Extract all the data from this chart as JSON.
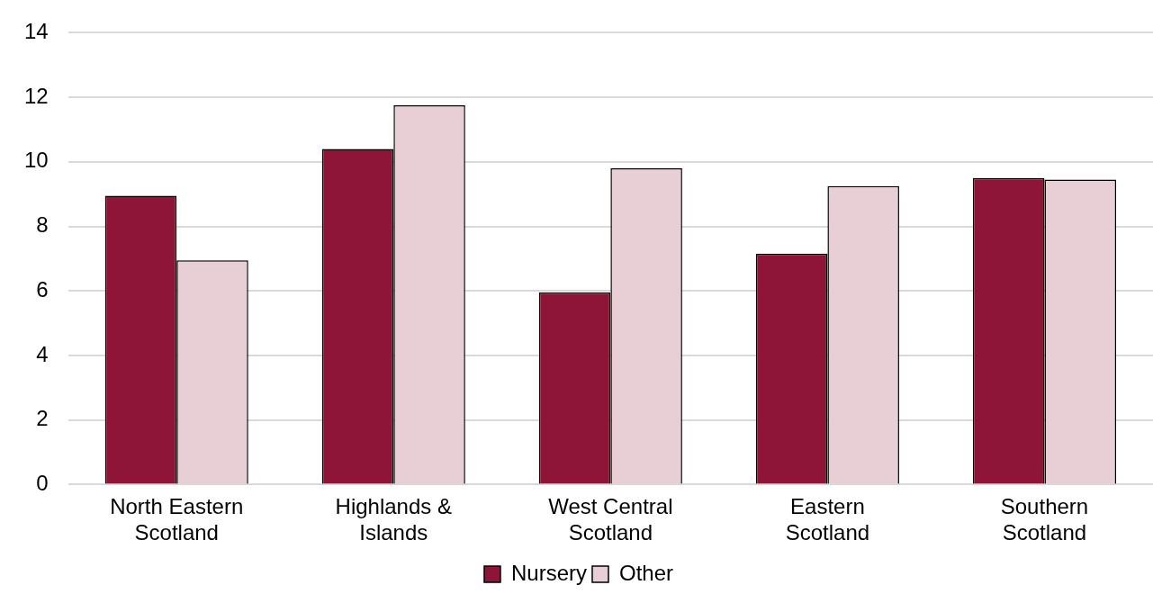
{
  "chart_data": {
    "type": "bar",
    "categories": [
      "North Eastern Scotland",
      "Highlands & Islands",
      "West Central Scotland",
      "Eastern Scotland",
      "Southern Scotland"
    ],
    "series": [
      {
        "name": "Nursery",
        "color": "#8e1538",
        "values": [
          8.95,
          10.4,
          5.95,
          7.15,
          9.5
        ]
      },
      {
        "name": "Other",
        "color": "#e8cfd6",
        "values": [
          6.95,
          11.75,
          9.8,
          9.25,
          9.45
        ]
      }
    ],
    "ylim": [
      0,
      14
    ],
    "yticks": [
      0,
      2,
      4,
      6,
      8,
      10,
      12,
      14
    ],
    "grid": "y",
    "legend": "bottom"
  }
}
